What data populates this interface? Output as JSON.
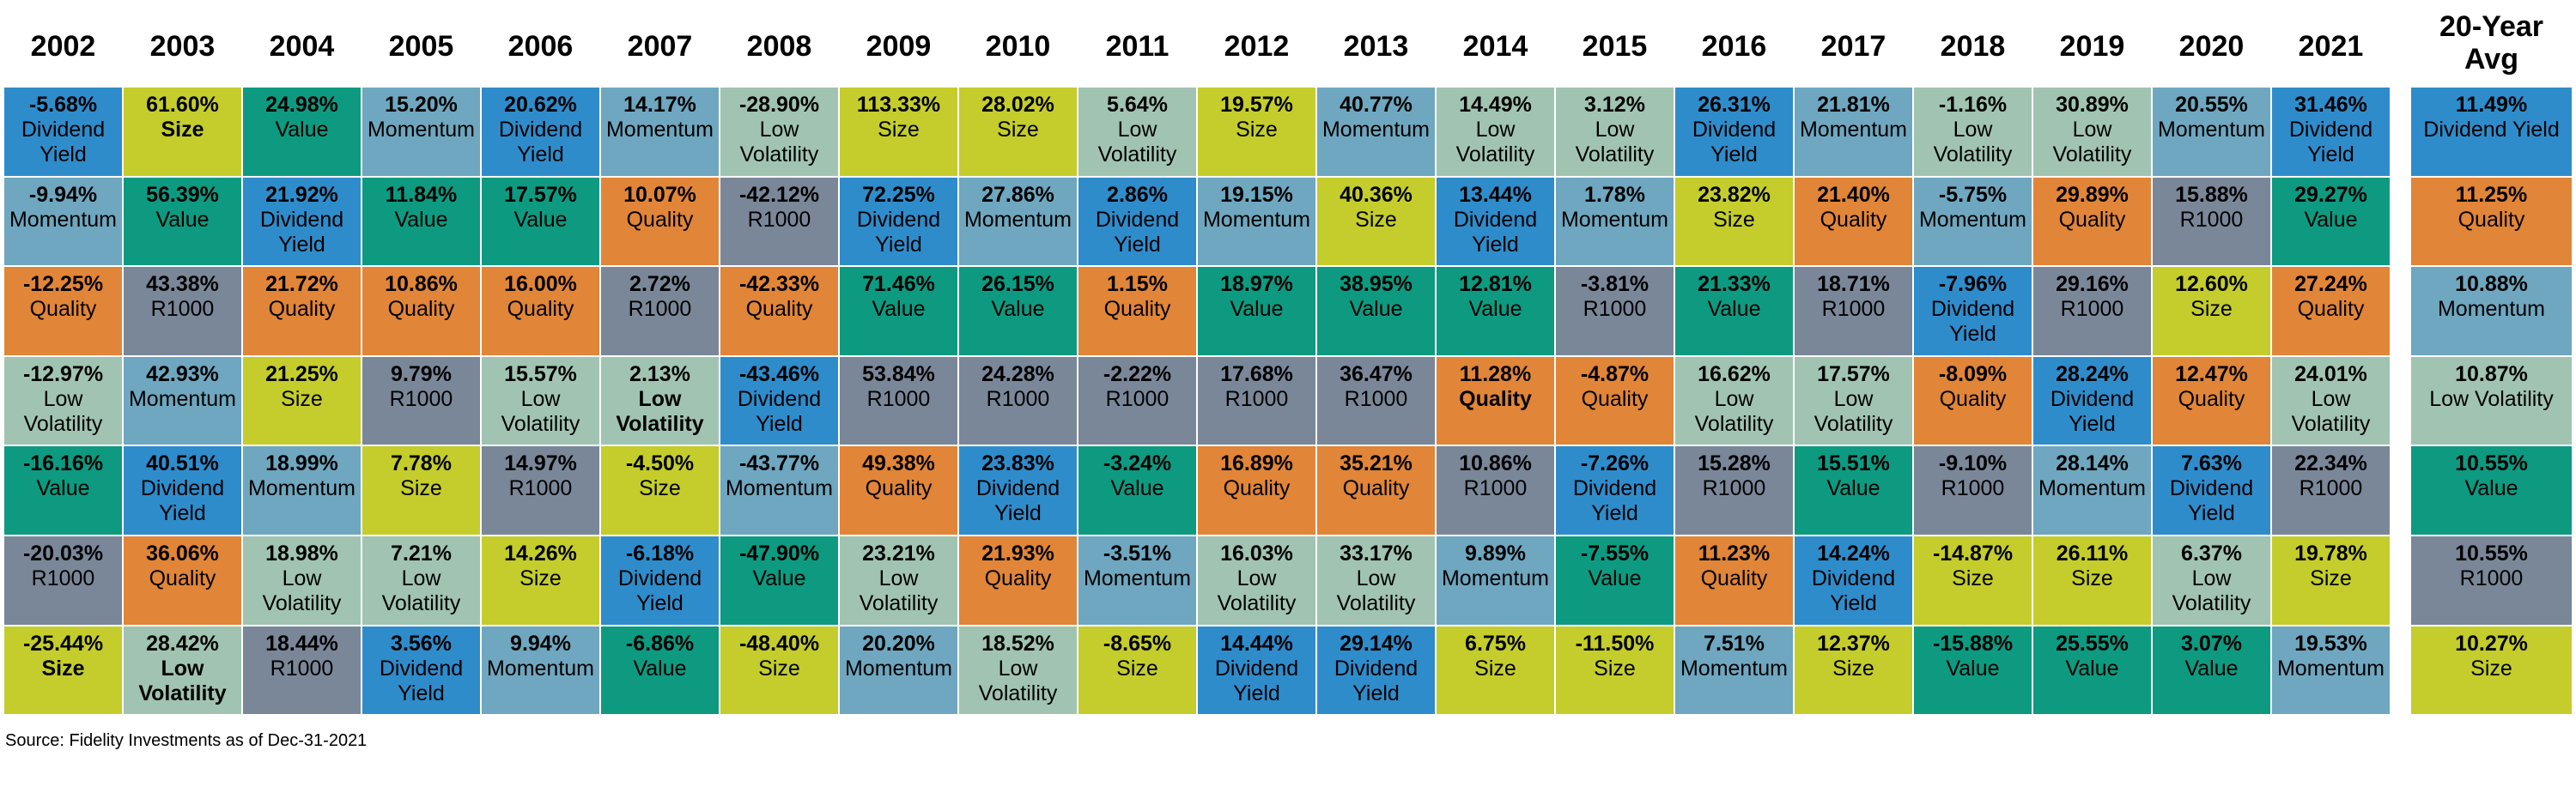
{
  "colors": {
    "Dividend Yield": "#2f8ccb",
    "Size": "#c4cd2b",
    "Value": "#0d9a80",
    "Momentum": "#6ea7bf",
    "Low Volatility": "#a0c4b1",
    "Quality": "#e18538",
    "R1000": "#7a8799"
  },
  "years": [
    {
      "year": "2002",
      "cells": [
        {
          "value": "-5.68%",
          "factor": "Dividend Yield"
        },
        {
          "value": "-9.94%",
          "factor": "Momentum"
        },
        {
          "value": "-12.25%",
          "factor": "Quality"
        },
        {
          "value": "-12.97%",
          "factor": "Low Volatility"
        },
        {
          "value": "-16.16%",
          "factor": "Value"
        },
        {
          "value": "-20.03%",
          "factor": "R1000"
        },
        {
          "value": "-25.44%",
          "factor": "Size",
          "bold": true
        }
      ]
    },
    {
      "year": "2003",
      "cells": [
        {
          "value": "61.60%",
          "factor": "Size",
          "bold": true
        },
        {
          "value": "56.39%",
          "factor": "Value"
        },
        {
          "value": "43.38%",
          "factor": "R1000"
        },
        {
          "value": "42.93%",
          "factor": "Momentum"
        },
        {
          "value": "40.51%",
          "factor": "Dividend Yield"
        },
        {
          "value": "36.06%",
          "factor": "Quality"
        },
        {
          "value": "28.42%",
          "factor": "Low Volatility",
          "bold": true
        }
      ]
    },
    {
      "year": "2004",
      "cells": [
        {
          "value": "24.98%",
          "factor": "Value"
        },
        {
          "value": "21.92%",
          "factor": "Dividend Yield"
        },
        {
          "value": "21.72%",
          "factor": "Quality"
        },
        {
          "value": "21.25%",
          "factor": "Size"
        },
        {
          "value": "18.99%",
          "factor": "Momentum"
        },
        {
          "value": "18.98%",
          "factor": "Low Volatility"
        },
        {
          "value": "18.44%",
          "factor": "R1000"
        }
      ]
    },
    {
      "year": "2005",
      "cells": [
        {
          "value": "15.20%",
          "factor": "Momentum"
        },
        {
          "value": "11.84%",
          "factor": "Value"
        },
        {
          "value": "10.86%",
          "factor": "Quality"
        },
        {
          "value": "9.79%",
          "factor": "R1000"
        },
        {
          "value": "7.78%",
          "factor": "Size"
        },
        {
          "value": "7.21%",
          "factor": "Low Volatility"
        },
        {
          "value": "3.56%",
          "factor": "Dividend Yield"
        }
      ]
    },
    {
      "year": "2006",
      "cells": [
        {
          "value": "20.62%",
          "factor": "Dividend Yield"
        },
        {
          "value": "17.57%",
          "factor": "Value"
        },
        {
          "value": "16.00%",
          "factor": "Quality"
        },
        {
          "value": "15.57%",
          "factor": "Low Volatility"
        },
        {
          "value": "14.97%",
          "factor": "R1000"
        },
        {
          "value": "14.26%",
          "factor": "Size"
        },
        {
          "value": "9.94%",
          "factor": "Momentum"
        }
      ]
    },
    {
      "year": "2007",
      "cells": [
        {
          "value": "14.17%",
          "factor": "Momentum"
        },
        {
          "value": "10.07%",
          "factor": "Quality"
        },
        {
          "value": "2.72%",
          "factor": "R1000"
        },
        {
          "value": "2.13%",
          "factor": "Low Volatility",
          "bold": true
        },
        {
          "value": "-4.50%",
          "factor": "Size"
        },
        {
          "value": "-6.18%",
          "factor": "Dividend Yield"
        },
        {
          "value": "-6.86%",
          "factor": "Value"
        }
      ]
    },
    {
      "year": "2008",
      "cells": [
        {
          "value": "-28.90%",
          "factor": "Low Volatility"
        },
        {
          "value": "-42.12%",
          "factor": "R1000"
        },
        {
          "value": "-42.33%",
          "factor": "Quality"
        },
        {
          "value": "-43.46%",
          "factor": "Dividend Yield"
        },
        {
          "value": "-43.77%",
          "factor": "Momentum"
        },
        {
          "value": "-47.90%",
          "factor": "Value"
        },
        {
          "value": "-48.40%",
          "factor": "Size"
        }
      ]
    },
    {
      "year": "2009",
      "cells": [
        {
          "value": "113.33%",
          "factor": "Size"
        },
        {
          "value": "72.25%",
          "factor": "Dividend Yield"
        },
        {
          "value": "71.46%",
          "factor": "Value"
        },
        {
          "value": "53.84%",
          "factor": "R1000"
        },
        {
          "value": "49.38%",
          "factor": "Quality"
        },
        {
          "value": "23.21%",
          "factor": "Low Volatility"
        },
        {
          "value": "20.20%",
          "factor": "Momentum"
        }
      ]
    },
    {
      "year": "2010",
      "cells": [
        {
          "value": "28.02%",
          "factor": "Size"
        },
        {
          "value": "27.86%",
          "factor": "Momentum"
        },
        {
          "value": "26.15%",
          "factor": "Value"
        },
        {
          "value": "24.28%",
          "factor": "R1000"
        },
        {
          "value": "23.83%",
          "factor": "Dividend Yield"
        },
        {
          "value": "21.93%",
          "factor": "Quality"
        },
        {
          "value": "18.52%",
          "factor": "Low Volatility"
        }
      ]
    },
    {
      "year": "2011",
      "cells": [
        {
          "value": "5.64%",
          "factor": "Low Volatility"
        },
        {
          "value": "2.86%",
          "factor": "Dividend Yield"
        },
        {
          "value": "1.15%",
          "factor": "Quality"
        },
        {
          "value": "-2.22%",
          "factor": "R1000"
        },
        {
          "value": "-3.24%",
          "factor": "Value"
        },
        {
          "value": "-3.51%",
          "factor": "Momentum"
        },
        {
          "value": "-8.65%",
          "factor": "Size"
        }
      ]
    },
    {
      "year": "2012",
      "cells": [
        {
          "value": "19.57%",
          "factor": "Size"
        },
        {
          "value": "19.15%",
          "factor": "Momentum"
        },
        {
          "value": "18.97%",
          "factor": "Value"
        },
        {
          "value": "17.68%",
          "factor": "R1000"
        },
        {
          "value": "16.89%",
          "factor": "Quality"
        },
        {
          "value": "16.03%",
          "factor": "Low Volatility"
        },
        {
          "value": "14.44%",
          "factor": "Dividend Yield"
        }
      ]
    },
    {
      "year": "2013",
      "cells": [
        {
          "value": "40.77%",
          "factor": "Momentum"
        },
        {
          "value": "40.36%",
          "factor": "Size"
        },
        {
          "value": "38.95%",
          "factor": "Value"
        },
        {
          "value": "36.47%",
          "factor": "R1000"
        },
        {
          "value": "35.21%",
          "factor": "Quality"
        },
        {
          "value": "33.17%",
          "factor": "Low Volatility"
        },
        {
          "value": "29.14%",
          "factor": "Dividend Yield"
        }
      ]
    },
    {
      "year": "2014",
      "cells": [
        {
          "value": "14.49%",
          "factor": "Low Volatility"
        },
        {
          "value": "13.44%",
          "factor": "Dividend Yield"
        },
        {
          "value": "12.81%",
          "factor": "Value"
        },
        {
          "value": "11.28%",
          "factor": "Quality",
          "bold": true
        },
        {
          "value": "10.86%",
          "factor": "R1000"
        },
        {
          "value": "9.89%",
          "factor": "Momentum"
        },
        {
          "value": "6.75%",
          "factor": "Size"
        }
      ]
    },
    {
      "year": "2015",
      "cells": [
        {
          "value": "3.12%",
          "factor": "Low Volatility"
        },
        {
          "value": "1.78%",
          "factor": "Momentum"
        },
        {
          "value": "-3.81%",
          "factor": "R1000"
        },
        {
          "value": "-4.87%",
          "factor": "Quality"
        },
        {
          "value": "-7.26%",
          "factor": "Dividend Yield"
        },
        {
          "value": "-7.55%",
          "factor": "Value"
        },
        {
          "value": "-11.50%",
          "factor": "Size"
        }
      ]
    },
    {
      "year": "2016",
      "cells": [
        {
          "value": "26.31%",
          "factor": "Dividend Yield"
        },
        {
          "value": "23.82%",
          "factor": "Size"
        },
        {
          "value": "21.33%",
          "factor": "Value"
        },
        {
          "value": "16.62%",
          "factor": "Low Volatility"
        },
        {
          "value": "15.28%",
          "factor": "R1000"
        },
        {
          "value": "11.23%",
          "factor": "Quality"
        },
        {
          "value": "7.51%",
          "factor": "Momentum"
        }
      ]
    },
    {
      "year": "2017",
      "cells": [
        {
          "value": "21.81%",
          "factor": "Momentum"
        },
        {
          "value": "21.40%",
          "factor": "Quality"
        },
        {
          "value": "18.71%",
          "factor": "R1000"
        },
        {
          "value": "17.57%",
          "factor": "Low Volatility"
        },
        {
          "value": "15.51%",
          "factor": "Value"
        },
        {
          "value": "14.24%",
          "factor": "Dividend Yield"
        },
        {
          "value": "12.37%",
          "factor": "Size"
        }
      ]
    },
    {
      "year": "2018",
      "cells": [
        {
          "value": "-1.16%",
          "factor": "Low Volatility"
        },
        {
          "value": "-5.75%",
          "factor": "Momentum"
        },
        {
          "value": "-7.96%",
          "factor": "Dividend Yield"
        },
        {
          "value": "-8.09%",
          "factor": "Quality"
        },
        {
          "value": "-9.10%",
          "factor": "R1000"
        },
        {
          "value": "-14.87%",
          "factor": "Size"
        },
        {
          "value": "-15.88%",
          "factor": "Value"
        }
      ]
    },
    {
      "year": "2019",
      "cells": [
        {
          "value": "30.89%",
          "factor": "Low Volatility"
        },
        {
          "value": "29.89%",
          "factor": "Quality"
        },
        {
          "value": "29.16%",
          "factor": "R1000"
        },
        {
          "value": "28.24%",
          "factor": "Dividend Yield"
        },
        {
          "value": "28.14%",
          "factor": "Momentum"
        },
        {
          "value": "26.11%",
          "factor": "Size"
        },
        {
          "value": "25.55%",
          "factor": "Value"
        }
      ]
    },
    {
      "year": "2020",
      "cells": [
        {
          "value": "20.55%",
          "factor": "Momentum"
        },
        {
          "value": "15.88%",
          "factor": "R1000"
        },
        {
          "value": "12.60%",
          "factor": "Size"
        },
        {
          "value": "12.47%",
          "factor": "Quality"
        },
        {
          "value": "7.63%",
          "factor": "Dividend Yield"
        },
        {
          "value": "6.37%",
          "factor": "Low Volatility"
        },
        {
          "value": "3.07%",
          "factor": "Value"
        }
      ]
    },
    {
      "year": "2021",
      "cells": [
        {
          "value": "31.46%",
          "factor": "Dividend Yield"
        },
        {
          "value": "29.27%",
          "factor": "Value"
        },
        {
          "value": "27.24%",
          "factor": "Quality"
        },
        {
          "value": "24.01%",
          "factor": "Low Volatility"
        },
        {
          "value": "22.34%",
          "factor": "R1000"
        },
        {
          "value": "19.78%",
          "factor": "Size"
        },
        {
          "value": "19.53%",
          "factor": "Momentum"
        }
      ]
    }
  ],
  "average": {
    "title": "20-Year Avg",
    "cells": [
      {
        "value": "11.49%",
        "factor": "Dividend Yield"
      },
      {
        "value": "11.25%",
        "factor": "Quality"
      },
      {
        "value": "10.88%",
        "factor": "Momentum"
      },
      {
        "value": "10.87%",
        "factor": "Low Volatility"
      },
      {
        "value": "10.55%",
        "factor": "Value"
      },
      {
        "value": "10.55%",
        "factor": "R1000"
      },
      {
        "value": "10.27%",
        "factor": "Size"
      }
    ]
  },
  "source": "Source: Fidelity Investments as of Dec-31-2021"
}
